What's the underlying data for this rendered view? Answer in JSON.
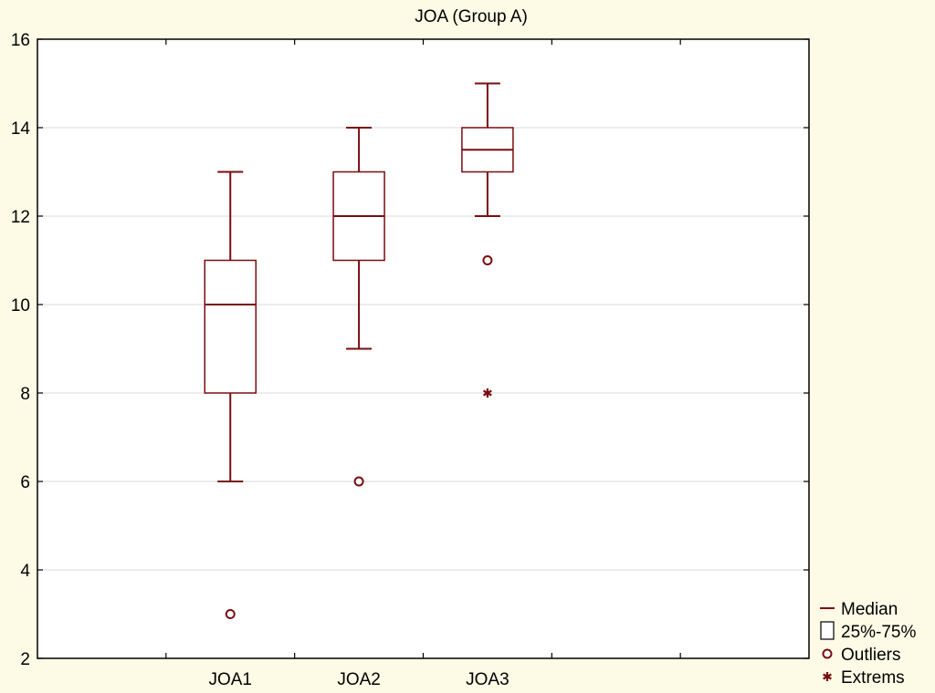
{
  "chart_data": {
    "type": "boxplot",
    "title": "JOA (Group A)",
    "xlabel": "",
    "ylabel": "",
    "ylim": [
      2,
      16
    ],
    "yticks": [
      2,
      4,
      6,
      8,
      10,
      12,
      14,
      16
    ],
    "grid": true,
    "categories": [
      "JOA1",
      "JOA2",
      "JOA3"
    ],
    "boxes": [
      {
        "name": "JOA1",
        "whisker_low": 6,
        "q1": 8,
        "median": 10,
        "q3": 11,
        "whisker_high": 13,
        "outliers": [
          3
        ],
        "extremes": []
      },
      {
        "name": "JOA2",
        "whisker_low": 9,
        "q1": 11,
        "median": 12,
        "q3": 13,
        "whisker_high": 14,
        "outliers": [
          6
        ],
        "extremes": []
      },
      {
        "name": "JOA3",
        "whisker_low": 12,
        "q1": 13,
        "median": 13.5,
        "q3": 14,
        "whisker_high": 15,
        "outliers": [
          11
        ],
        "extremes": [
          8
        ]
      }
    ],
    "legend": {
      "position": "bottom-right",
      "items": [
        "Median",
        "25%-75%",
        "Outliers",
        "Extrems"
      ]
    },
    "colors": {
      "series": "#7a0c10",
      "grid": "#d9d9d9",
      "background": "#fdfbe6",
      "plot": "#ffffff"
    }
  }
}
